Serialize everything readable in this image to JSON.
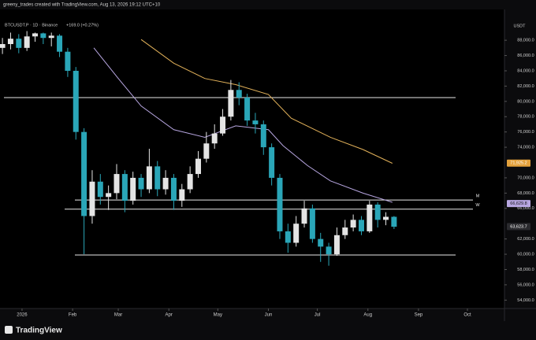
{
  "header": "greeny_trades created with TradingView.com, Aug 13, 2026 19:12 UTC+10",
  "footer": "TradingView",
  "chart_data": {
    "type": "candlestick",
    "symbol": "BTCUSDT.P · 1D · Binance",
    "change": "+169.0 (+0.27%)",
    "currency": "USDT",
    "up_color": "#e4e4e4",
    "down_color": "#2aa6b8",
    "x": [
      -12,
      -7,
      -2,
      3,
      8,
      13,
      18,
      23,
      28,
      33,
      38,
      43,
      48,
      53,
      58,
      63,
      68,
      73,
      78,
      83,
      88,
      93,
      98,
      103,
      108,
      113,
      118,
      123,
      128,
      133,
      138,
      143,
      148,
      153,
      158,
      163,
      168,
      173,
      178,
      183,
      188,
      193,
      198,
      203,
      208,
      213,
      218,
      223,
      228
    ],
    "open": [
      87000,
      87500,
      88200,
      87000,
      88500,
      88900,
      88300,
      88600,
      86500,
      84000,
      76000,
      65000,
      69500,
      67500,
      68000,
      70500,
      67000,
      70000,
      68500,
      71500,
      68500,
      70000,
      67000,
      68500,
      70500,
      72500,
      74500,
      75800,
      78000,
      81500,
      80500,
      77500,
      77000,
      74000,
      70000,
      63000,
      61500,
      64000,
      66000,
      62000,
      61000,
      60000,
      62500,
      63500,
      64500,
      63000,
      66500,
      64500,
      64900
    ],
    "high": [
      88300,
      89000,
      88800,
      89200,
      89000,
      89000,
      89000,
      88800,
      87000,
      84500,
      76500,
      71000,
      70500,
      69000,
      71800,
      71000,
      70800,
      70500,
      73800,
      72200,
      71000,
      70500,
      69200,
      71500,
      73500,
      76000,
      77000,
      79000,
      82800,
      82500,
      81000,
      78500,
      77500,
      74500,
      70500,
      64000,
      65000,
      67000,
      66500,
      62800,
      61500,
      63500,
      64500,
      65200,
      65000,
      67000,
      66800,
      65500,
      65000
    ],
    "low": [
      86200,
      86800,
      86300,
      86600,
      87800,
      87500,
      87200,
      85800,
      83200,
      75000,
      60000,
      64000,
      66500,
      65800,
      67200,
      65500,
      66500,
      67500,
      68000,
      67600,
      67800,
      65800,
      66200,
      68000,
      70000,
      72000,
      73800,
      75500,
      77500,
      79500,
      76800,
      75800,
      73000,
      69000,
      62000,
      60200,
      61000,
      63500,
      61500,
      59000,
      58500,
      59800,
      62000,
      63000,
      62500,
      62800,
      63500,
      63800,
      63300
    ],
    "close": [
      87500,
      88200,
      87000,
      88500,
      88900,
      88300,
      88600,
      86500,
      84000,
      76000,
      65000,
      69500,
      67500,
      68000,
      70500,
      67000,
      70000,
      68500,
      71500,
      68500,
      70000,
      67000,
      68500,
      70500,
      72500,
      74500,
      75800,
      78000,
      81500,
      80500,
      77500,
      77000,
      74000,
      70000,
      63000,
      61500,
      64000,
      66000,
      62000,
      61000,
      60000,
      62500,
      63500,
      64500,
      63000,
      66500,
      64500,
      64900,
      63600
    ],
    "series": [
      {
        "color": "#b7a6e0",
        "x": [
          44,
          59,
          73,
          93,
          112,
          131,
          151,
          160,
          175,
          189,
          209,
          227
        ],
        "values": [
          87000,
          83000,
          79400,
          76300,
          75300,
          76800,
          76300,
          74200,
          71600,
          69600,
          68000,
          66800
        ]
      },
      {
        "color": "#e3b25a",
        "x": [
          73,
          93,
          112,
          131,
          151,
          165,
          189,
          209,
          227
        ],
        "values": [
          88100,
          85000,
          83000,
          82200,
          80900,
          77800,
          75300,
          73700,
          71900
        ]
      }
    ],
    "levels": [
      {
        "value": 80500
      },
      {
        "value": 67100,
        "label": "M"
      },
      {
        "value": 65900,
        "label": "W"
      },
      {
        "value": 59900
      }
    ],
    "price_labels": [
      {
        "value": 71925.2,
        "label": "71,925.2",
        "color": "#e3a13c"
      },
      {
        "value": 66629.8,
        "label": "66,629.8",
        "color": "#b7a6e0"
      },
      {
        "value": 63623.7,
        "label": "63,623.7",
        "color": "#2a2a2e"
      }
    ],
    "xlim": [
      -13.5,
      295.7
    ],
    "ylim": [
      52900,
      91000
    ],
    "xticks": [
      {
        "value": 0,
        "label": "2026"
      },
      {
        "value": 31,
        "label": "Feb"
      },
      {
        "value": 59,
        "label": "Mar"
      },
      {
        "value": 90,
        "label": "Apr"
      },
      {
        "value": 120,
        "label": "May"
      },
      {
        "value": 151,
        "label": "Jun"
      },
      {
        "value": 181,
        "label": "Jul"
      },
      {
        "value": 212,
        "label": "Aug"
      },
      {
        "value": 243,
        "label": "Sep"
      },
      {
        "value": 273,
        "label": "Oct"
      }
    ],
    "yticks": [
      {
        "value": 54000,
        "label": "54,000.0"
      },
      {
        "value": 56000,
        "label": "56,000.0"
      },
      {
        "value": 58000,
        "label": "58,000.0"
      },
      {
        "value": 60000,
        "label": "60,000.0"
      },
      {
        "value": 62000,
        "label": "62,000.0"
      },
      {
        "value": 66000,
        "label": "66,000.0"
      },
      {
        "value": 68000,
        "label": "68,000.0"
      },
      {
        "value": 70000,
        "label": "70,000.0"
      },
      {
        "value": 74000,
        "label": "74,000.0"
      },
      {
        "value": 76000,
        "label": "76,000.0"
      },
      {
        "value": 78000,
        "label": "78,000.0"
      },
      {
        "value": 80000,
        "label": "80,000.0"
      },
      {
        "value": 82000,
        "label": "82,000.0"
      },
      {
        "value": 84000,
        "label": "84,000.0"
      },
      {
        "value": 86000,
        "label": "86,000.0"
      },
      {
        "value": 88000,
        "label": "88,000.0"
      }
    ]
  }
}
